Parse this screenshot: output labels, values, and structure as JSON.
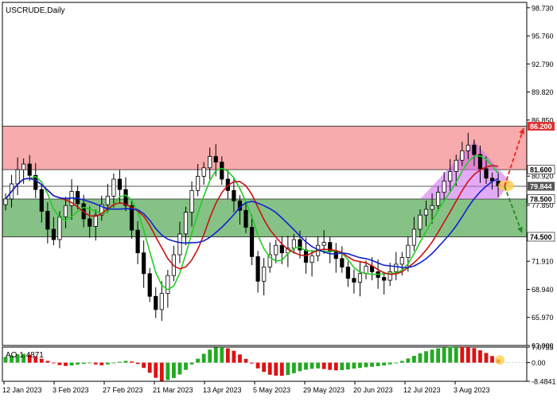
{
  "symbol_label": "USCRUDE,Daily",
  "indicator_label": "AO 1.4871",
  "colors": {
    "resistance_zone": "#f7a6a8",
    "support_zone": "#7fbf7f",
    "triangle": "#cc66ee",
    "ma_fast": "#22cc22",
    "ma_mid": "#cc1111",
    "ma_slow": "#1122cc",
    "ao_up": "#22aa22",
    "ao_down": "#dd1111",
    "arrow_up": "#ee2222",
    "arrow_down": "#228822",
    "highlight": "#ffcc44"
  },
  "chart_data": {
    "type": "candlestick",
    "title": "USCRUDE,Daily",
    "price_ylim": [
      63.0,
      99.3
    ],
    "price_ticks": [
      98.73,
      95.76,
      92.79,
      89.82,
      86.85,
      80.92,
      77.85,
      71.91,
      68.94,
      65.97,
      63.0
    ],
    "price_tick_labels": [
      "98.730",
      "95.760",
      "92.790",
      "89.820",
      "86.850",
      "80.920",
      "77.850",
      "71.910",
      "68.940",
      "65.970",
      "63.000"
    ],
    "x_labels": [
      "12 Jan 2023",
      "3 Feb 2023",
      "27 Feb 2023",
      "21 Mar 2023",
      "13 Apr 2023",
      "5 May 2023",
      "29 May 2023",
      "20 Jun 2023",
      "12 Jul 2023",
      "3 Aug 2023"
    ],
    "levels": [
      {
        "value": 86.2,
        "label": "86.200",
        "bg": "#e03030"
      },
      {
        "value": 81.6,
        "label": "81.600",
        "bg": "#ffffff"
      },
      {
        "value": 79.844,
        "label": "79.844",
        "bg": "#555555"
      },
      {
        "value": 78.5,
        "label": "78.500",
        "bg": "#ffffff"
      },
      {
        "value": 74.5,
        "label": "74.500",
        "bg": "#ffffff"
      }
    ],
    "zones": [
      {
        "name": "resistance",
        "from": 81.6,
        "to": 86.2
      },
      {
        "name": "support",
        "from": 74.5,
        "to": 78.5
      }
    ],
    "close": [
      78.5,
      80.1,
      81.6,
      82.2,
      81.0,
      79.5,
      77.2,
      75.3,
      74.2,
      76.6,
      77.8,
      79.3,
      78.0,
      76.4,
      75.6,
      76.8,
      77.9,
      78.8,
      80.6,
      79.5,
      77.8,
      75.2,
      72.8,
      70.6,
      68.2,
      66.8,
      68.5,
      70.4,
      72.6,
      74.8,
      77.1,
      79.4,
      80.9,
      81.8,
      83.0,
      82.4,
      80.6,
      79.4,
      78.3,
      77.3,
      75.5,
      72.4,
      69.8,
      71.3,
      72.6,
      73.6,
      72.8,
      73.3,
      74.2,
      73.1,
      71.8,
      72.5,
      73.6,
      73.9,
      72.9,
      72.2,
      71.3,
      70.1,
      69.7,
      70.6,
      71.4,
      70.8,
      70.2,
      69.9,
      70.8,
      71.6,
      72.3,
      73.6,
      75.3,
      76.8,
      77.4,
      77.8,
      79.2,
      80.4,
      81.4,
      82.6,
      83.6,
      84.2,
      83.2,
      81.7,
      80.7,
      80.4,
      79.9
    ],
    "ao_ylim": [
      -8.4841,
      7.0755
    ],
    "ao_ticks": [
      7.0755,
      0.0,
      -8.4841
    ],
    "ao_tick_labels": [
      "7.0755",
      "0.00",
      "-8.4841"
    ],
    "ao_values": [
      2.6,
      3.2,
      3.8,
      4.0,
      3.6,
      2.9,
      1.8,
      0.8,
      -0.3,
      -1.1,
      -1.5,
      -1.3,
      -0.9,
      -0.5,
      -0.3,
      -0.8,
      -1.2,
      -0.8,
      -0.2,
      0.4,
      0.8,
      0.5,
      -0.6,
      -2.4,
      -4.6,
      -6.9,
      -8.3,
      -7.9,
      -7.0,
      -5.4,
      -3.3,
      -0.8,
      1.8,
      4.0,
      5.9,
      6.9,
      7.0,
      6.5,
      5.4,
      3.7,
      1.7,
      -0.4,
      -2.6,
      -4.2,
      -5.5,
      -5.9,
      -6.0,
      -5.6,
      -4.8,
      -3.9,
      -3.2,
      -2.8,
      -2.6,
      -2.9,
      -3.3,
      -3.5,
      -3.4,
      -3.1,
      -2.7,
      -2.4,
      -2.1,
      -1.9,
      -1.6,
      -1.3,
      -0.8,
      -0.1,
      0.8,
      1.9,
      3.1,
      4.2,
      5.2,
      5.9,
      6.5,
      7.0,
      7.3,
      7.4,
      7.3,
      7.1,
      6.6,
      5.6,
      4.4,
      3.0,
      1.5
    ]
  }
}
